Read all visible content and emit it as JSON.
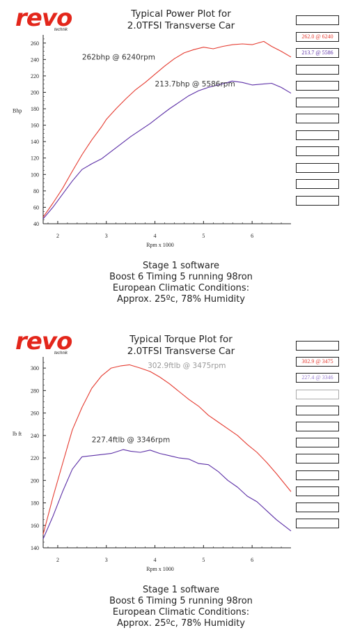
{
  "logo": {
    "word": "revo",
    "sub": "technik"
  },
  "colors": {
    "red": "#e53a2f",
    "purple": "#5b2ea6",
    "axis": "#222222",
    "text": "#333333"
  },
  "chart_data": [
    {
      "type": "line",
      "title_lines": [
        "Typical Power Plot for",
        "2.0TFSI Transverse Car"
      ],
      "xlabel": "Rpm x 1000",
      "ylabel": "Bhp",
      "xlim": [
        1.7,
        6.8
      ],
      "ylim": [
        40,
        270
      ],
      "x_ticks": [
        2,
        3,
        4,
        5,
        6
      ],
      "y_ticks": [
        40,
        60,
        80,
        100,
        120,
        140,
        160,
        180,
        200,
        220,
        240,
        260
      ],
      "series": [
        {
          "color": "#e53a2f",
          "x": [
            1.7,
            1.9,
            2.1,
            2.3,
            2.5,
            2.7,
            2.9,
            3.0,
            3.2,
            3.4,
            3.6,
            3.8,
            4.0,
            4.2,
            4.4,
            4.6,
            4.8,
            5.0,
            5.2,
            5.4,
            5.6,
            5.8,
            6.0,
            6.24,
            6.4,
            6.6,
            6.8
          ],
          "y": [
            48,
            65,
            83,
            104,
            124,
            142,
            158,
            167,
            180,
            192,
            203,
            212,
            222,
            232,
            241,
            248,
            252,
            255,
            253,
            256,
            258,
            259,
            258,
            262,
            256,
            250,
            243
          ]
        },
        {
          "color": "#5b2ea6",
          "x": [
            1.7,
            1.9,
            2.1,
            2.3,
            2.5,
            2.7,
            2.9,
            3.1,
            3.3,
            3.5,
            3.7,
            3.9,
            4.1,
            4.3,
            4.5,
            4.7,
            4.9,
            5.1,
            5.3,
            5.5,
            5.586,
            5.8,
            6.0,
            6.2,
            6.4,
            6.6,
            6.8
          ],
          "y": [
            46,
            60,
            76,
            92,
            106,
            113,
            119,
            128,
            137,
            146,
            154,
            162,
            171,
            180,
            188,
            196,
            202,
            206,
            209,
            212,
            213.7,
            212,
            209,
            210,
            211,
            206,
            199
          ]
        }
      ],
      "annotations": [
        {
          "text": "262bhp @ 6240rpm",
          "x": 2.5,
          "y": 240,
          "color": "#333333"
        },
        {
          "text": "213.7bhp @ 5586rpm",
          "x": 4.0,
          "y": 207,
          "color": "#333333"
        }
      ],
      "legend_boxes": [
        {
          "text": "",
          "color": "#222222"
        },
        {
          "text": "262.0  @  6240",
          "color": "#e53a2f"
        },
        {
          "text": "213.7  @  5586",
          "color": "#5b2ea6"
        },
        {
          "text": "",
          "color": "#222222"
        },
        {
          "text": "",
          "color": "#222222"
        },
        {
          "text": "",
          "color": "#222222"
        },
        {
          "text": "",
          "color": "#222222"
        },
        {
          "text": "",
          "color": "#222222"
        },
        {
          "text": "",
          "color": "#222222"
        },
        {
          "text": "",
          "color": "#222222"
        },
        {
          "text": "",
          "color": "#222222"
        },
        {
          "text": "",
          "color": "#222222"
        }
      ],
      "caption_lines": [
        "Stage 1 software",
        "Boost 6 Timing 5 running 98ron",
        "European Climatic Conditions:",
        "Approx. 25ºc, 78% Humidity"
      ]
    },
    {
      "type": "line",
      "title_lines": [
        "Typical Torque Plot for",
        "2.0TFSI Transverse Car"
      ],
      "xlabel": "Rpm x 1000",
      "ylabel": "lb ft",
      "xlim": [
        1.7,
        6.8
      ],
      "ylim": [
        140,
        310
      ],
      "x_ticks": [
        2,
        3,
        4,
        5,
        6
      ],
      "y_ticks": [
        140,
        160,
        180,
        200,
        220,
        240,
        260,
        280,
        300
      ],
      "series": [
        {
          "color": "#e53a2f",
          "x": [
            1.7,
            1.9,
            2.1,
            2.3,
            2.5,
            2.7,
            2.9,
            3.1,
            3.3,
            3.475,
            3.7,
            3.9,
            4.1,
            4.3,
            4.5,
            4.7,
            4.9,
            5.1,
            5.3,
            5.5,
            5.7,
            5.9,
            6.1,
            6.3,
            6.5,
            6.8
          ],
          "y": [
            152,
            185,
            215,
            245,
            265,
            282,
            293,
            300,
            302,
            302.9,
            300,
            297,
            292,
            286,
            279,
            272,
            266,
            258,
            252,
            246,
            240,
            232,
            225,
            216,
            206,
            190
          ]
        },
        {
          "color": "#5b2ea6",
          "x": [
            1.7,
            1.9,
            2.1,
            2.3,
            2.5,
            2.7,
            2.9,
            3.1,
            3.346,
            3.5,
            3.7,
            3.9,
            4.1,
            4.3,
            4.5,
            4.7,
            4.9,
            5.1,
            5.3,
            5.5,
            5.7,
            5.9,
            6.1,
            6.3,
            6.5,
            6.8
          ],
          "y": [
            148,
            168,
            190,
            210,
            221,
            222,
            223,
            224,
            227.4,
            226,
            225,
            227,
            224,
            222,
            220,
            219,
            215,
            214,
            208,
            200,
            194,
            186,
            181,
            173,
            165,
            155
          ]
        }
      ],
      "annotations": [
        {
          "text": "302.9ftlb @ 3475rpm",
          "x": 3.85,
          "y": 300,
          "color": "#999999"
        },
        {
          "text": "227.4ftlb @ 3346rpm",
          "x": 2.7,
          "y": 234,
          "color": "#333333"
        }
      ],
      "legend_boxes": [
        {
          "text": "",
          "color": "#222222"
        },
        {
          "text": "302.9  @  3475",
          "color": "#e53a2f"
        },
        {
          "text": "227.4  @  3346",
          "color": "#9a7fd1"
        },
        {
          "text": "",
          "color": "#aaaaaa"
        },
        {
          "text": "",
          "color": "#222222"
        },
        {
          "text": "",
          "color": "#222222"
        },
        {
          "text": "",
          "color": "#222222"
        },
        {
          "text": "",
          "color": "#222222"
        },
        {
          "text": "",
          "color": "#222222"
        },
        {
          "text": "",
          "color": "#222222"
        },
        {
          "text": "",
          "color": "#222222"
        },
        {
          "text": "",
          "color": "#222222"
        }
      ],
      "caption_lines": [
        "Stage 1 software",
        "Boost 6 Timing 5 running 98ron",
        "European Climatic Conditions:",
        "Approx. 25ºc, 78% Humidity"
      ]
    }
  ]
}
